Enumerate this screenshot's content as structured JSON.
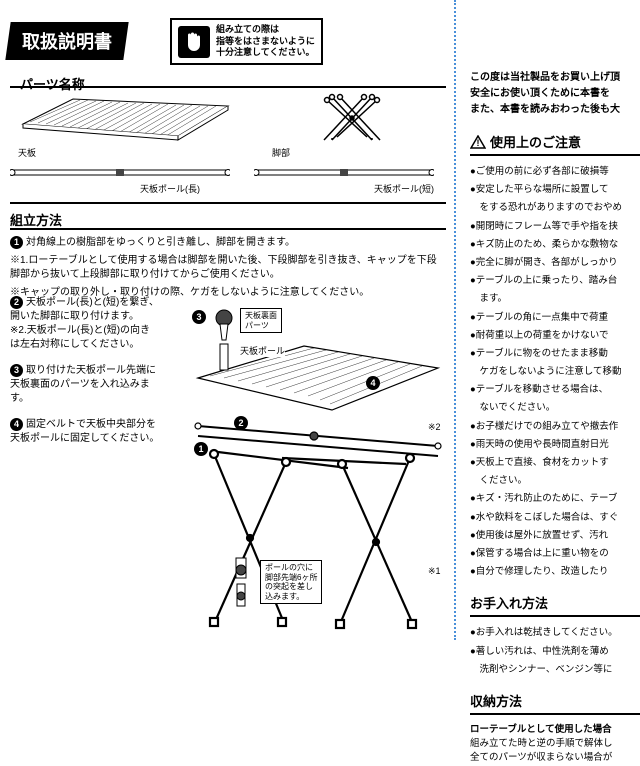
{
  "title": "取扱説明書",
  "warning": {
    "line1": "組み立ての際は",
    "line2": "指等をはさまないように",
    "line3": "十分注意してください。"
  },
  "partsHeading": "パーツ名称",
  "parts": {
    "tabletop": "天板",
    "legs": "脚部",
    "poleLong": "天板ポール(長)",
    "poleShort": "天板ポール(短)"
  },
  "assemblyHeading": "組立方法",
  "step1": {
    "text": "対角線上の樹脂部をゆっくりと引き離し、脚部を開きます。",
    "note1": "※1.ローテーブルとして使用する場合は脚部を開いた後、下段脚部を引き抜き、キャップを下段脚部から抜いて上段脚部に取り付けてからご使用ください。",
    "note2": "※キャップの取り外し・取り付けの際、ケガをしないように注意してください。"
  },
  "step2": {
    "text": "天板ポール(長)と(短)を繋ぎ、開いた脚部に取り付けます。",
    "note": "※2.天板ポール(長)と(短)の向きは左右対称にしてください。"
  },
  "step3": "取り付けた天板ポール先端に天板裏面のパーツを入れ込みます。",
  "step4": "固定ベルトで天板中央部分を天板ポールに固定してください。",
  "callout1": {
    "line1": "天板裏面",
    "line2": "パーツ"
  },
  "callout2": "天板ポール",
  "callout3": {
    "line1": "ポールの穴に",
    "line2": "脚部先端6ヶ所",
    "line3": "の突起を差し",
    "line4": "込みます。"
  },
  "diagNums": {
    "n1": "1",
    "n2": "2",
    "n3": "3",
    "n4": "4",
    "ref1": "※1",
    "ref2": "※2"
  },
  "right": {
    "intro1": "この度は当社製品をお買い上げ頂",
    "intro2": "安全にお使い頂くために本書を",
    "intro3": "また、本書を読みおわった後も大",
    "cautionH": "使用上のご注意",
    "bullets": [
      "ご使用の前に必ず各部に破損等",
      "安定した平らな場所に設置して",
      "　をする恐れがありますのでおやめ",
      "開閉時にフレーム等で手や指を挟",
      "キズ防止のため、柔らかな敷物な",
      "完全に脚が開き、各部がしっかり",
      "テーブルの上に乗ったり、踏み台",
      "　ます。",
      "テーブルの角に一点集中で荷重",
      "耐荷重以上の荷重をかけないで",
      "テーブルに物をのせたまま移動",
      "　ケガをしないように注意して移動",
      "テーブルを移動させる場合は、",
      "　ないでください。",
      "お子様だけでの組み立てや撤去作",
      "雨天時の使用や長時間直射日光",
      "天板上で直接、食材をカットす",
      "　ください。",
      "キズ・汚れ防止のために、テーブ",
      "水や飲料をこぼした場合は、すぐ",
      "使用後は屋外に放置せず、汚れ",
      "保管する場合は上に重い物をの",
      "自分で修理したり、改造したり"
    ],
    "careH": "お手入れ方法",
    "careBullets": [
      "お手入れは乾拭きしてください。",
      "著しい汚れは、中性洗剤を薄め",
      "　洗剤やシンナー、ベンジン等に"
    ],
    "storageH": "収納方法",
    "storage1": "ローテーブルとして使用した場合",
    "storage2": "組み立てた時と逆の手順で解体し",
    "storage3": "全てのパーツが収まらない場合が"
  },
  "colors": {
    "black": "#000000",
    "white": "#ffffff",
    "blue": "#4a90d9"
  }
}
